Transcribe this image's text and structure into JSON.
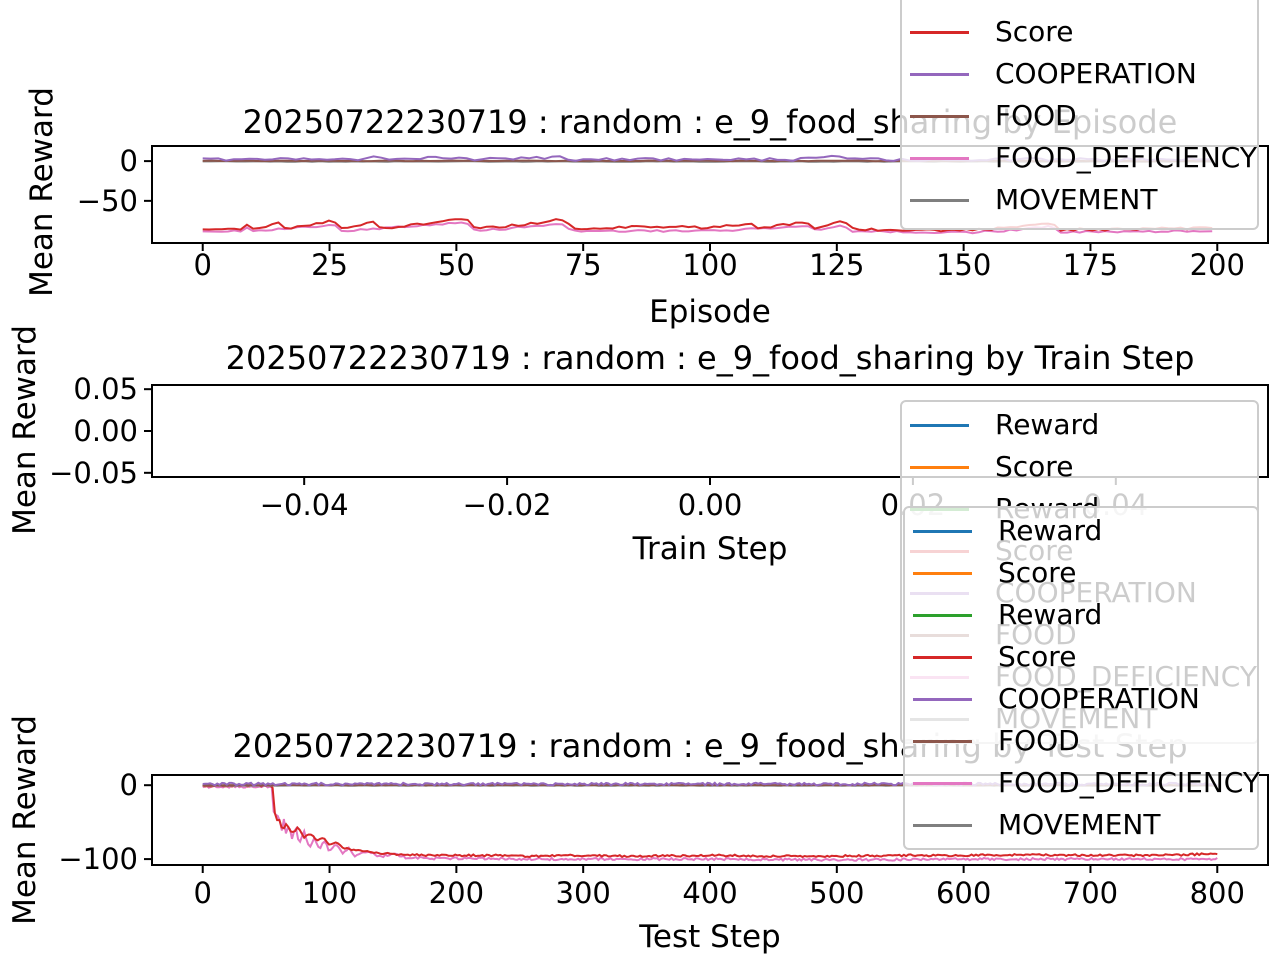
{
  "figure": {
    "background": "#ffffff",
    "text_color": "#000000"
  },
  "colors": {
    "reward_blue": "#1f77b4",
    "score_orange": "#ff7f0e",
    "reward_green": "#2ca02c",
    "score_red": "#d62728",
    "cooperation_purple": "#9467bd",
    "food_brown": "#8c564b",
    "food_deficiency_pink": "#e377c2",
    "movement_gray": "#7f7f7f",
    "axis": "#000000",
    "legend_border": "#cccccc"
  },
  "chart_data": [
    {
      "type": "line",
      "title": "20250722230719 : random : e_9_food_sharing by Episode",
      "xlabel": "Episode",
      "ylabel": "Mean Reward",
      "xlim": [
        -10,
        210
      ],
      "ylim": [
        -103,
        19
      ],
      "grid": false,
      "legend_position": "upper right, partially cut off at figure top",
      "xticks": [
        0,
        25,
        50,
        75,
        100,
        125,
        150,
        175,
        200
      ],
      "xtick_labels": [
        "0",
        "25",
        "50",
        "75",
        "100",
        "125",
        "150",
        "175",
        "200"
      ],
      "yticks": [
        0,
        -50
      ],
      "ytick_labels": [
        "0",
        "−50"
      ],
      "series": [
        {
          "name": "FOOD_DEFICIENCY",
          "color": "#e377c2",
          "noise": 1.2,
          "samples": 160,
          "points": [
            [
              0,
              -88
            ],
            [
              8,
              -88
            ],
            [
              9,
              -82
            ],
            [
              10,
              -88
            ],
            [
              26,
              -80
            ],
            [
              27,
              -88
            ],
            [
              52,
              -77
            ],
            [
              54,
              -88
            ],
            [
              71,
              -79
            ],
            [
              73,
              -88
            ],
            [
              100,
              -88
            ],
            [
              119,
              -82
            ],
            [
              121,
              -88
            ],
            [
              126,
              -80
            ],
            [
              128,
              -88
            ],
            [
              150,
              -90
            ],
            [
              160,
              -87
            ],
            [
              167,
              -82
            ],
            [
              169,
              -89
            ],
            [
              199,
              -88
            ]
          ]
        },
        {
          "name": "Score",
          "color": "#d62728",
          "noise": 1.5,
          "samples": 160,
          "points": [
            [
              0,
              -85
            ],
            [
              8,
              -85
            ],
            [
              9,
              -76
            ],
            [
              10,
              -85
            ],
            [
              15,
              -78
            ],
            [
              16,
              -85
            ],
            [
              26,
              -75
            ],
            [
              27,
              -85
            ],
            [
              34,
              -77
            ],
            [
              35,
              -85
            ],
            [
              52,
              -72
            ],
            [
              54,
              -85
            ],
            [
              63,
              -80
            ],
            [
              71,
              -73
            ],
            [
              73,
              -85
            ],
            [
              90,
              -82
            ],
            [
              100,
              -84
            ],
            [
              108,
              -78
            ],
            [
              110,
              -85
            ],
            [
              119,
              -76
            ],
            [
              121,
              -85
            ],
            [
              126,
              -74
            ],
            [
              128,
              -85
            ],
            [
              135,
              -87
            ],
            [
              150,
              -87
            ],
            [
              160,
              -84
            ],
            [
              167,
              -78
            ],
            [
              169,
              -86
            ],
            [
              180,
              -86
            ],
            [
              190,
              -85
            ],
            [
              199,
              -84
            ]
          ]
        },
        {
          "name": "MOVEMENT",
          "color": "#7f7f7f",
          "noise": 0.3,
          "samples": 120,
          "points": [
            [
              0,
              -0.5
            ],
            [
              199,
              -0.5
            ]
          ]
        },
        {
          "name": "FOOD",
          "color": "#8c564b",
          "noise": 0.4,
          "samples": 120,
          "points": [
            [
              0,
              0.3
            ],
            [
              199,
              0.3
            ]
          ]
        },
        {
          "name": "COOPERATION",
          "color": "#9467bd",
          "noise": 1.8,
          "samples": 130,
          "points": [
            [
              0,
              2
            ],
            [
              33,
              2
            ],
            [
              34,
              6
            ],
            [
              36,
              2
            ],
            [
              52,
              5
            ],
            [
              54,
              2
            ],
            [
              70,
              5
            ],
            [
              72,
              2
            ],
            [
              117,
              2
            ],
            [
              118,
              5
            ],
            [
              125,
              6
            ],
            [
              130,
              2
            ],
            [
              167,
              2
            ],
            [
              168,
              5
            ],
            [
              170,
              2
            ],
            [
              199,
              2
            ]
          ]
        }
      ]
    },
    {
      "type": "line",
      "title": "20250722230719 : random : e_9_food_sharing by Train Step",
      "xlabel": "Train Step",
      "ylabel": "Mean Reward",
      "xlim": [
        -0.055,
        0.055
      ],
      "ylim": [
        -0.055,
        0.055
      ],
      "grid": false,
      "legend_position": "below axes, right side (empty axes, no data plotted)",
      "xticks": [
        -0.04,
        -0.02,
        0.0,
        0.02,
        0.04
      ],
      "xtick_labels": [
        "−0.04",
        "−0.02",
        "0.00",
        "0.02",
        "0.04"
      ],
      "yticks": [
        0.05,
        0.0,
        -0.05
      ],
      "ytick_labels": [
        "0.05",
        "0.00",
        "−0.05"
      ],
      "series": []
    },
    {
      "type": "line",
      "title": "20250722230719 : random : e_9_food_sharing by Test Step",
      "xlabel": "Test Step",
      "ylabel": "Mean Reward",
      "xlim": [
        -40,
        840
      ],
      "ylim": [
        -108,
        13.8
      ],
      "grid": false,
      "legend_position": "upper right, overlapping title and axes",
      "xticks": [
        0,
        100,
        200,
        300,
        400,
        500,
        600,
        700,
        800
      ],
      "xtick_labels": [
        "0",
        "100",
        "200",
        "300",
        "400",
        "500",
        "600",
        "700",
        "800"
      ],
      "yticks": [
        0,
        -100
      ],
      "ytick_labels": [
        "0",
        "−100"
      ],
      "series": [
        {
          "name": "FOOD_DEFICIENCY",
          "color": "#e377c2",
          "noise": 1.5,
          "samples": 500,
          "points": [
            [
              0,
              -2
            ],
            [
              55,
              -2
            ],
            [
              56,
              -35
            ],
            [
              57,
              -20
            ],
            [
              58,
              -55
            ],
            [
              60,
              -35
            ],
            [
              62,
              -65
            ],
            [
              64,
              -45
            ],
            [
              66,
              -70
            ],
            [
              68,
              -50
            ],
            [
              70,
              -75
            ],
            [
              73,
              -55
            ],
            [
              76,
              -80
            ],
            [
              80,
              -62
            ],
            [
              84,
              -85
            ],
            [
              88,
              -70
            ],
            [
              92,
              -88
            ],
            [
              96,
              -75
            ],
            [
              100,
              -90
            ],
            [
              105,
              -80
            ],
            [
              110,
              -92
            ],
            [
              115,
              -85
            ],
            [
              120,
              -95
            ],
            [
              130,
              -90
            ],
            [
              140,
              -97
            ],
            [
              150,
              -93
            ],
            [
              160,
              -98
            ],
            [
              180,
              -99
            ],
            [
              200,
              -99
            ],
            [
              250,
              -100
            ],
            [
              300,
              -100
            ],
            [
              400,
              -100
            ],
            [
              500,
              -101
            ],
            [
              600,
              -100
            ],
            [
              700,
              -100
            ],
            [
              800,
              -100
            ]
          ]
        },
        {
          "name": "Score",
          "color": "#d62728",
          "noise": 1.3,
          "samples": 450,
          "points": [
            [
              0,
              -1
            ],
            [
              55,
              -1
            ],
            [
              56,
              -30
            ],
            [
              58,
              -50
            ],
            [
              60,
              -45
            ],
            [
              63,
              -60
            ],
            [
              66,
              -52
            ],
            [
              70,
              -65
            ],
            [
              75,
              -58
            ],
            [
              80,
              -70
            ],
            [
              85,
              -65
            ],
            [
              90,
              -75
            ],
            [
              95,
              -72
            ],
            [
              100,
              -80
            ],
            [
              105,
              -78
            ],
            [
              110,
              -84
            ],
            [
              120,
              -88
            ],
            [
              130,
              -90
            ],
            [
              140,
              -92
            ],
            [
              160,
              -94
            ],
            [
              180,
              -95
            ],
            [
              220,
              -95
            ],
            [
              260,
              -96
            ],
            [
              300,
              -95
            ],
            [
              340,
              -96
            ],
            [
              400,
              -95
            ],
            [
              450,
              -96
            ],
            [
              500,
              -96
            ],
            [
              550,
              -95
            ],
            [
              600,
              -95
            ],
            [
              650,
              -94
            ],
            [
              700,
              -95
            ],
            [
              750,
              -95
            ],
            [
              800,
              -93
            ]
          ]
        },
        {
          "name": "MOVEMENT",
          "color": "#7f7f7f",
          "noise": 0.25,
          "samples": 300,
          "points": [
            [
              0,
              -0.5
            ],
            [
              800,
              -0.5
            ]
          ]
        },
        {
          "name": "FOOD",
          "color": "#8c564b",
          "noise": 0.3,
          "samples": 300,
          "points": [
            [
              0,
              0.2
            ],
            [
              800,
              0.2
            ]
          ]
        },
        {
          "name": "COOPERATION",
          "color": "#9467bd",
          "noise": 1.8,
          "samples": 420,
          "points": [
            [
              0,
              1.5
            ],
            [
              800,
              1.5
            ]
          ]
        }
      ]
    }
  ],
  "legends": [
    {
      "id": "episode-legend",
      "note": "top entries cut off by figure edge",
      "entries": [
        {
          "label": "Score",
          "color": "#d62728"
        },
        {
          "label": "COOPERATION",
          "color": "#9467bd"
        },
        {
          "label": "FOOD",
          "color": "#8c564b"
        },
        {
          "label": "FOOD_DEFICIENCY",
          "color": "#e377c2"
        },
        {
          "label": "MOVEMENT",
          "color": "#7f7f7f"
        }
      ]
    },
    {
      "id": "train-step-legend",
      "entries": [
        {
          "label": "Reward",
          "color": "#1f77b4"
        },
        {
          "label": "Score",
          "color": "#ff7f0e"
        },
        {
          "label": "Reward",
          "color": "#2ca02c"
        },
        {
          "label": "Score",
          "color": "#d62728"
        },
        {
          "label": "COOPERATION",
          "color": "#9467bd"
        },
        {
          "label": "FOOD",
          "color": "#8c564b"
        },
        {
          "label": "FOOD_DEFICIENCY",
          "color": "#e377c2"
        },
        {
          "label": "MOVEMENT",
          "color": "#7f7f7f"
        }
      ]
    },
    {
      "id": "test-step-legend",
      "entries": [
        {
          "label": "Reward",
          "color": "#1f77b4"
        },
        {
          "label": "Score",
          "color": "#ff7f0e"
        },
        {
          "label": "Reward",
          "color": "#2ca02c"
        },
        {
          "label": "Score",
          "color": "#d62728"
        },
        {
          "label": "COOPERATION",
          "color": "#9467bd"
        },
        {
          "label": "FOOD",
          "color": "#8c564b"
        },
        {
          "label": "FOOD_DEFICIENCY",
          "color": "#e377c2"
        },
        {
          "label": "MOVEMENT",
          "color": "#7f7f7f"
        }
      ]
    }
  ]
}
